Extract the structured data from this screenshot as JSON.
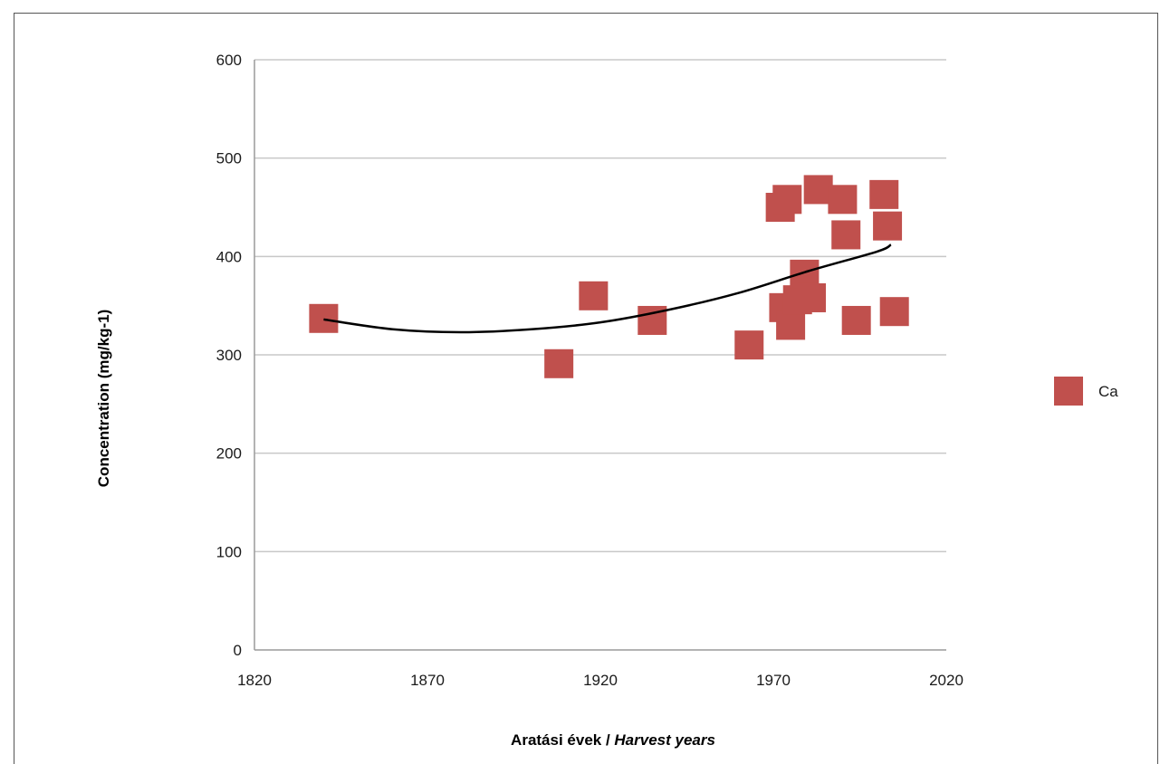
{
  "chart_data": {
    "type": "scatter",
    "xlabel_main": "Aratási évek / ",
    "xlabel_italic": "Harvest years",
    "ylabel": "Concentration (mg/kg-1)",
    "xlim": [
      1820,
      2020
    ],
    "ylim": [
      0,
      600
    ],
    "x_ticks": [
      1820,
      1870,
      1920,
      1970,
      2020
    ],
    "y_ticks": [
      0,
      100,
      200,
      300,
      400,
      500,
      600
    ],
    "grid": "horizontal",
    "legend_position": "right",
    "series": [
      {
        "name": "Ca",
        "color": "#c0504d",
        "marker": "square",
        "points": [
          {
            "x": 1840,
            "y": 337
          },
          {
            "x": 1908,
            "y": 291
          },
          {
            "x": 1918,
            "y": 360
          },
          {
            "x": 1935,
            "y": 335
          },
          {
            "x": 1963,
            "y": 310
          },
          {
            "x": 1972,
            "y": 450
          },
          {
            "x": 1974,
            "y": 458
          },
          {
            "x": 1973,
            "y": 348
          },
          {
            "x": 1975,
            "y": 330
          },
          {
            "x": 1977,
            "y": 356
          },
          {
            "x": 1979,
            "y": 382
          },
          {
            "x": 1981,
            "y": 358
          },
          {
            "x": 1983,
            "y": 468
          },
          {
            "x": 1990,
            "y": 458
          },
          {
            "x": 1991,
            "y": 422
          },
          {
            "x": 1994,
            "y": 335
          },
          {
            "x": 2002,
            "y": 463
          },
          {
            "x": 2003,
            "y": 431
          },
          {
            "x": 2005,
            "y": 344
          }
        ]
      }
    ],
    "trendline": {
      "type": "polynomial",
      "color": "#000000",
      "points": [
        {
          "x": 1840,
          "y": 336
        },
        {
          "x": 1860,
          "y": 326
        },
        {
          "x": 1880,
          "y": 323
        },
        {
          "x": 1900,
          "y": 326
        },
        {
          "x": 1920,
          "y": 333
        },
        {
          "x": 1940,
          "y": 346
        },
        {
          "x": 1960,
          "y": 363
        },
        {
          "x": 1980,
          "y": 385
        },
        {
          "x": 2000,
          "y": 405
        },
        {
          "x": 2004,
          "y": 412
        }
      ]
    }
  }
}
